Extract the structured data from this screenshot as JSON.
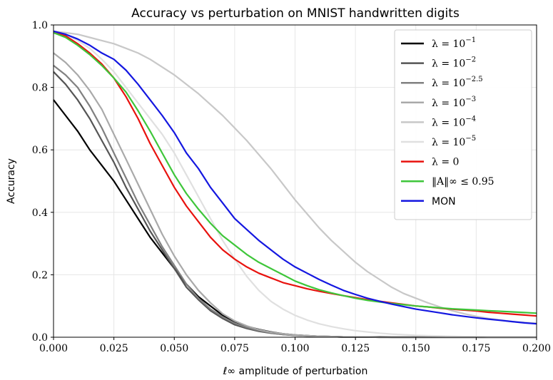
{
  "chart_data": {
    "type": "line",
    "title": "Accuracy vs perturbation on MNIST handwritten digits",
    "xlabel": "ℓ∞ amplitude of perturbation",
    "ylabel": "Accuracy",
    "xlim": [
      0.0,
      0.2
    ],
    "ylim": [
      0.0,
      1.0
    ],
    "grid": true,
    "legend_position": "top-right",
    "x_ticks": [
      "0.000",
      "0.025",
      "0.050",
      "0.075",
      "0.100",
      "0.125",
      "0.150",
      "0.175",
      "0.200"
    ],
    "y_ticks": [
      "0.0",
      "0.2",
      "0.4",
      "0.6",
      "0.8",
      "1.0"
    ],
    "x": [
      0.0,
      0.005,
      0.01,
      0.015,
      0.02,
      0.025,
      0.03,
      0.035,
      0.04,
      0.045,
      0.05,
      0.055,
      0.06,
      0.065,
      0.07,
      0.075,
      0.08,
      0.085,
      0.09,
      0.095,
      0.1,
      0.105,
      0.11,
      0.115,
      0.12,
      0.125,
      0.13,
      0.135,
      0.14,
      0.145,
      0.15,
      0.155,
      0.16,
      0.165,
      0.17,
      0.175,
      0.18,
      0.185,
      0.19,
      0.195,
      0.2
    ],
    "series": [
      {
        "name": "λ = 10⁻¹",
        "label_base": "λ = 10",
        "label_exp": "−1",
        "color": "#000000",
        "values": [
          0.76,
          0.71,
          0.66,
          0.6,
          0.55,
          0.5,
          0.44,
          0.38,
          0.32,
          0.27,
          0.22,
          0.17,
          0.13,
          0.1,
          0.07,
          0.05,
          0.035,
          0.025,
          0.017,
          0.011,
          0.007,
          0.005,
          0.003,
          0.002,
          0.001,
          0.001,
          0.001,
          0.001,
          0.0,
          0.0,
          0.0,
          0.0,
          0.0,
          0.0,
          0.0,
          0.0,
          0.0,
          0.0,
          0.0,
          0.0,
          0.0
        ]
      },
      {
        "name": "λ = 10⁻²",
        "label_base": "λ = 10",
        "label_exp": "−2",
        "color": "#555555",
        "values": [
          0.85,
          0.81,
          0.76,
          0.7,
          0.63,
          0.56,
          0.48,
          0.41,
          0.34,
          0.28,
          0.22,
          0.16,
          0.12,
          0.085,
          0.06,
          0.04,
          0.028,
          0.019,
          0.013,
          0.009,
          0.006,
          0.004,
          0.003,
          0.002,
          0.001,
          0.001,
          0.001,
          0.0,
          0.0,
          0.0,
          0.0,
          0.0,
          0.0,
          0.0,
          0.0,
          0.0,
          0.0,
          0.0,
          0.0,
          0.0,
          0.0
        ]
      },
      {
        "name": "λ = 10⁻²·⁵",
        "label_base": "λ = 10",
        "label_exp": "−2.5",
        "color": "#808080",
        "values": [
          0.87,
          0.84,
          0.8,
          0.74,
          0.67,
          0.59,
          0.51,
          0.43,
          0.36,
          0.29,
          0.23,
          0.17,
          0.125,
          0.09,
          0.065,
          0.045,
          0.031,
          0.021,
          0.014,
          0.009,
          0.006,
          0.004,
          0.003,
          0.002,
          0.001,
          0.001,
          0.001,
          0.0,
          0.0,
          0.0,
          0.0,
          0.0,
          0.0,
          0.0,
          0.0,
          0.0,
          0.0,
          0.0,
          0.0,
          0.0,
          0.0
        ]
      },
      {
        "name": "λ = 10⁻³",
        "label_base": "λ = 10",
        "label_exp": "−3",
        "color": "#a9a9a9",
        "values": [
          0.91,
          0.88,
          0.84,
          0.79,
          0.73,
          0.65,
          0.57,
          0.49,
          0.41,
          0.33,
          0.26,
          0.2,
          0.15,
          0.11,
          0.075,
          0.052,
          0.036,
          0.024,
          0.016,
          0.011,
          0.007,
          0.005,
          0.003,
          0.002,
          0.001,
          0.001,
          0.001,
          0.0,
          0.0,
          0.0,
          0.0,
          0.0,
          0.0,
          0.0,
          0.0,
          0.0,
          0.0,
          0.0,
          0.0,
          0.0,
          0.0
        ]
      },
      {
        "name": "λ = 10⁻⁴",
        "label_base": "λ = 10",
        "label_exp": "−4",
        "color": "#c8c8c8",
        "values": [
          0.98,
          0.975,
          0.97,
          0.96,
          0.95,
          0.94,
          0.925,
          0.91,
          0.89,
          0.865,
          0.84,
          0.81,
          0.78,
          0.745,
          0.71,
          0.67,
          0.63,
          0.585,
          0.54,
          0.49,
          0.44,
          0.395,
          0.35,
          0.31,
          0.275,
          0.24,
          0.21,
          0.185,
          0.16,
          0.14,
          0.125,
          0.11,
          0.097,
          0.085,
          0.075,
          0.067,
          0.06,
          0.055,
          0.05,
          0.047,
          0.045
        ]
      },
      {
        "name": "λ = 10⁻⁵",
        "label_base": "λ = 10",
        "label_exp": "−5",
        "color": "#e0e0e0",
        "values": [
          0.975,
          0.97,
          0.95,
          0.925,
          0.89,
          0.85,
          0.8,
          0.75,
          0.7,
          0.65,
          0.59,
          0.52,
          0.45,
          0.38,
          0.31,
          0.25,
          0.195,
          0.15,
          0.115,
          0.09,
          0.07,
          0.055,
          0.043,
          0.034,
          0.027,
          0.021,
          0.017,
          0.013,
          0.01,
          0.008,
          0.006,
          0.005,
          0.004,
          0.003,
          0.002,
          0.002,
          0.001,
          0.001,
          0.001,
          0.001,
          0.001
        ]
      },
      {
        "name": "λ = 0",
        "label_base": "λ = 0",
        "label_exp": "",
        "color": "#e8120e",
        "values": [
          0.975,
          0.965,
          0.94,
          0.91,
          0.875,
          0.83,
          0.77,
          0.7,
          0.62,
          0.55,
          0.48,
          0.42,
          0.37,
          0.32,
          0.28,
          0.25,
          0.225,
          0.205,
          0.19,
          0.175,
          0.165,
          0.155,
          0.147,
          0.14,
          0.133,
          0.127,
          0.12,
          0.115,
          0.11,
          0.105,
          0.1,
          0.097,
          0.093,
          0.09,
          0.087,
          0.084,
          0.08,
          0.077,
          0.074,
          0.071,
          0.068
        ]
      },
      {
        "name": "‖A‖∞ ≤ 0.95",
        "label_base": "‖A‖∞ ≤ 0.95",
        "label_exp": "",
        "color": "#3ec63a",
        "values": [
          0.975,
          0.96,
          0.935,
          0.905,
          0.87,
          0.83,
          0.785,
          0.725,
          0.66,
          0.59,
          0.52,
          0.46,
          0.41,
          0.365,
          0.325,
          0.295,
          0.265,
          0.24,
          0.22,
          0.2,
          0.18,
          0.165,
          0.152,
          0.142,
          0.133,
          0.125,
          0.118,
          0.113,
          0.108,
          0.104,
          0.1,
          0.097,
          0.094,
          0.091,
          0.089,
          0.087,
          0.085,
          0.083,
          0.081,
          0.079,
          0.077
        ]
      },
      {
        "name": "MON",
        "label_base": "MON",
        "label_exp": "",
        "color": "#1417e0",
        "values": [
          0.98,
          0.97,
          0.955,
          0.935,
          0.91,
          0.89,
          0.855,
          0.81,
          0.76,
          0.71,
          0.655,
          0.59,
          0.54,
          0.48,
          0.43,
          0.38,
          0.345,
          0.31,
          0.28,
          0.25,
          0.225,
          0.205,
          0.185,
          0.167,
          0.15,
          0.137,
          0.125,
          0.115,
          0.106,
          0.098,
          0.09,
          0.084,
          0.078,
          0.072,
          0.067,
          0.062,
          0.058,
          0.054,
          0.05,
          0.046,
          0.043
        ]
      }
    ]
  }
}
